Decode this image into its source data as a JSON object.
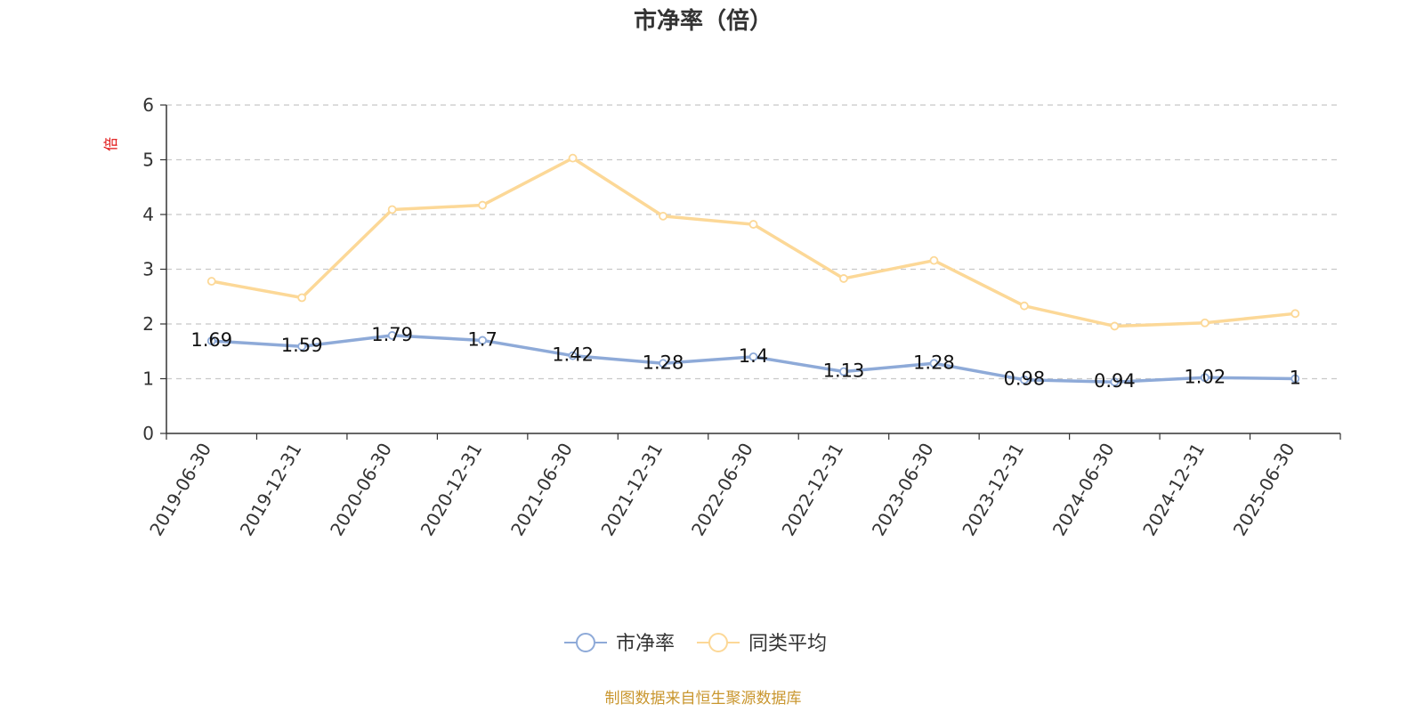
{
  "chart_data": {
    "type": "line",
    "title": "市净率（倍）",
    "ylabel": "倍",
    "xlabel": "",
    "ylim": [
      0,
      6
    ],
    "yticks": [
      "0",
      "1",
      "2",
      "3",
      "4",
      "5",
      "6"
    ],
    "grid": true,
    "legend_position": "bottom",
    "categories": [
      "2019-06-30",
      "2019-12-31",
      "2020-06-30",
      "2020-12-31",
      "2021-06-30",
      "2021-12-31",
      "2022-06-30",
      "2022-12-31",
      "2023-06-30",
      "2023-12-31",
      "2024-06-30",
      "2024-12-31",
      "2025-06-30"
    ],
    "series": [
      {
        "name": "市净率",
        "color": "#8eaad8",
        "values": [
          1.69,
          1.59,
          1.79,
          1.7,
          1.42,
          1.28,
          1.4,
          1.13,
          1.28,
          0.98,
          0.94,
          1.02,
          1
        ],
        "labels": [
          "1.69",
          "1.59",
          "1.79",
          "1.7",
          "1.42",
          "1.28",
          "1.4",
          "1.13",
          "1.28",
          "0.98",
          "0.94",
          "1.02",
          "1"
        ]
      },
      {
        "name": "同类平均",
        "color": "#fcd897",
        "values": [
          2.78,
          2.48,
          4.09,
          4.17,
          5.03,
          3.97,
          3.82,
          2.83,
          3.16,
          2.33,
          1.96,
          2.02,
          2.19
        ]
      }
    ],
    "source": "制图数据来自恒生聚源数据库"
  }
}
